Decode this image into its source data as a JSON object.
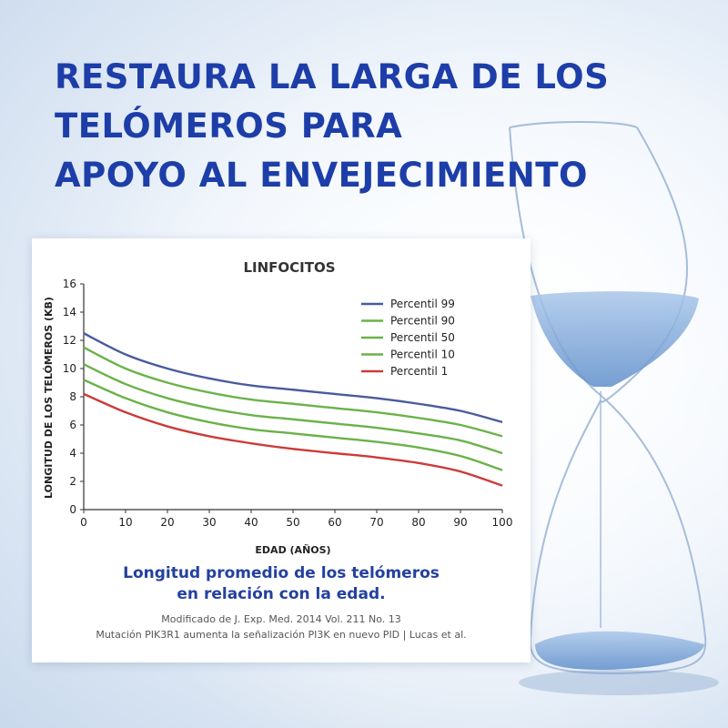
{
  "headline": {
    "line1": "RESTAURA LA LARGA DE LOS",
    "line2": "TELÓMEROS PARA",
    "line3": "APOYO AL ENVEJECIMIENTO"
  },
  "caption": {
    "line1": "Longitud promedio de los telómeros",
    "line2": "en relación con la edad."
  },
  "source": {
    "line1": "Modificado de J. Exp. Med. 2014 Vol. 211 No. 13",
    "line2": "Mutación PIK3R1 aumenta la señalización PI3K en nuevo PID | Lucas et al."
  },
  "colors": {
    "headline": "#1d3ea8",
    "caption": "#23419e",
    "p99": "#4a5b9c",
    "green": "#6ab24a",
    "p1": "#cc3b3b"
  },
  "chart_data": {
    "type": "line",
    "title": "LINFOCITOS",
    "xlabel": "EDAD (AÑOS)",
    "ylabel": "LONGITUD DE LOS TELÓMEROS (KB)",
    "xlim": [
      0,
      100
    ],
    "ylim": [
      0,
      16
    ],
    "xticks": [
      "0",
      "10",
      "20",
      "30",
      "40",
      "50",
      "60",
      "70",
      "80",
      "90",
      "100"
    ],
    "yticks": [
      "0",
      "2",
      "4",
      "6",
      "8",
      "10",
      "12",
      "14",
      "16"
    ],
    "grid": false,
    "legend_position": "top-right",
    "x": [
      0,
      10,
      20,
      30,
      40,
      50,
      60,
      70,
      80,
      90,
      100
    ],
    "series": [
      {
        "name": "Percentil 99",
        "color": "#4a5b9c",
        "values": [
          12.5,
          11.0,
          10.0,
          9.3,
          8.8,
          8.5,
          8.2,
          7.9,
          7.5,
          7.0,
          6.2
        ]
      },
      {
        "name": "Percentil 90",
        "color": "#6ab24a",
        "values": [
          11.5,
          10.0,
          9.0,
          8.3,
          7.8,
          7.5,
          7.2,
          6.9,
          6.5,
          6.0,
          5.2
        ]
      },
      {
        "name": "Percentil 50",
        "color": "#6ab24a",
        "values": [
          10.3,
          8.9,
          7.9,
          7.2,
          6.7,
          6.4,
          6.1,
          5.8,
          5.4,
          4.9,
          4.0
        ]
      },
      {
        "name": "Percentil 10",
        "color": "#6ab24a",
        "values": [
          9.2,
          7.9,
          6.9,
          6.2,
          5.7,
          5.4,
          5.1,
          4.8,
          4.4,
          3.8,
          2.8
        ]
      },
      {
        "name": "Percentil 1",
        "color": "#cc3b3b",
        "values": [
          8.2,
          6.9,
          5.9,
          5.2,
          4.7,
          4.3,
          4.0,
          3.7,
          3.3,
          2.7,
          1.7
        ]
      }
    ]
  }
}
